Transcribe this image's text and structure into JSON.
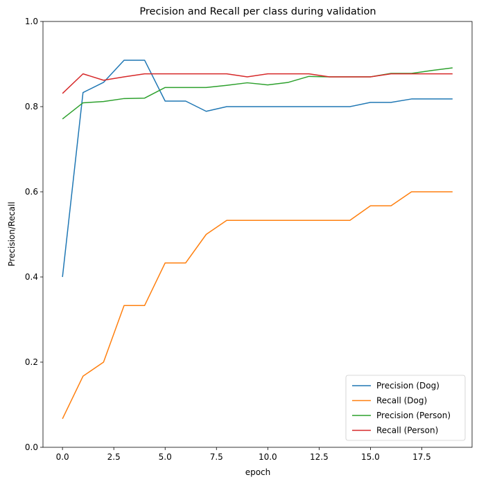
{
  "chart_data": {
    "type": "line",
    "title": "Precision and Recall per class during validation",
    "xlabel": "epoch",
    "ylabel": "Precision/Recall",
    "xlim": [
      -0.95,
      19.95
    ],
    "ylim": [
      0.0,
      1.0
    ],
    "x_ticks": [
      "0.0",
      "2.5",
      "5.0",
      "7.5",
      "10.0",
      "12.5",
      "15.0",
      "17.5"
    ],
    "y_ticks": [
      "0.0",
      "0.2",
      "0.4",
      "0.6",
      "0.8",
      "1.0"
    ],
    "grid": false,
    "legend_position": "lower-right",
    "x": [
      0,
      1,
      2,
      3,
      4,
      5,
      6,
      7,
      8,
      9,
      10,
      11,
      12,
      13,
      14,
      15,
      16,
      17,
      18,
      19
    ],
    "series": [
      {
        "name": "Precision (Dog)",
        "color": "#1f77b4",
        "values": [
          0.4,
          0.833,
          0.857,
          0.909,
          0.909,
          0.813,
          0.813,
          0.789,
          0.8,
          0.8,
          0.8,
          0.8,
          0.8,
          0.8,
          0.8,
          0.81,
          0.81,
          0.818,
          0.818,
          0.818
        ]
      },
      {
        "name": "Recall (Dog)",
        "color": "#ff7f0e",
        "values": [
          0.067,
          0.167,
          0.2,
          0.333,
          0.333,
          0.433,
          0.433,
          0.5,
          0.533,
          0.533,
          0.533,
          0.533,
          0.533,
          0.533,
          0.533,
          0.567,
          0.567,
          0.6,
          0.6,
          0.6
        ]
      },
      {
        "name": "Precision (Person)",
        "color": "#2ca02c",
        "values": [
          0.771,
          0.809,
          0.812,
          0.819,
          0.82,
          0.845,
          0.845,
          0.845,
          0.85,
          0.856,
          0.851,
          0.857,
          0.871,
          0.87,
          0.87,
          0.87,
          0.878,
          0.878,
          0.885,
          0.891
        ]
      },
      {
        "name": "Recall (Person)",
        "color": "#d62728",
        "values": [
          0.831,
          0.877,
          0.862,
          0.87,
          0.877,
          0.877,
          0.877,
          0.877,
          0.877,
          0.87,
          0.877,
          0.877,
          0.877,
          0.87,
          0.87,
          0.87,
          0.877,
          0.877,
          0.877,
          0.877
        ]
      }
    ]
  }
}
